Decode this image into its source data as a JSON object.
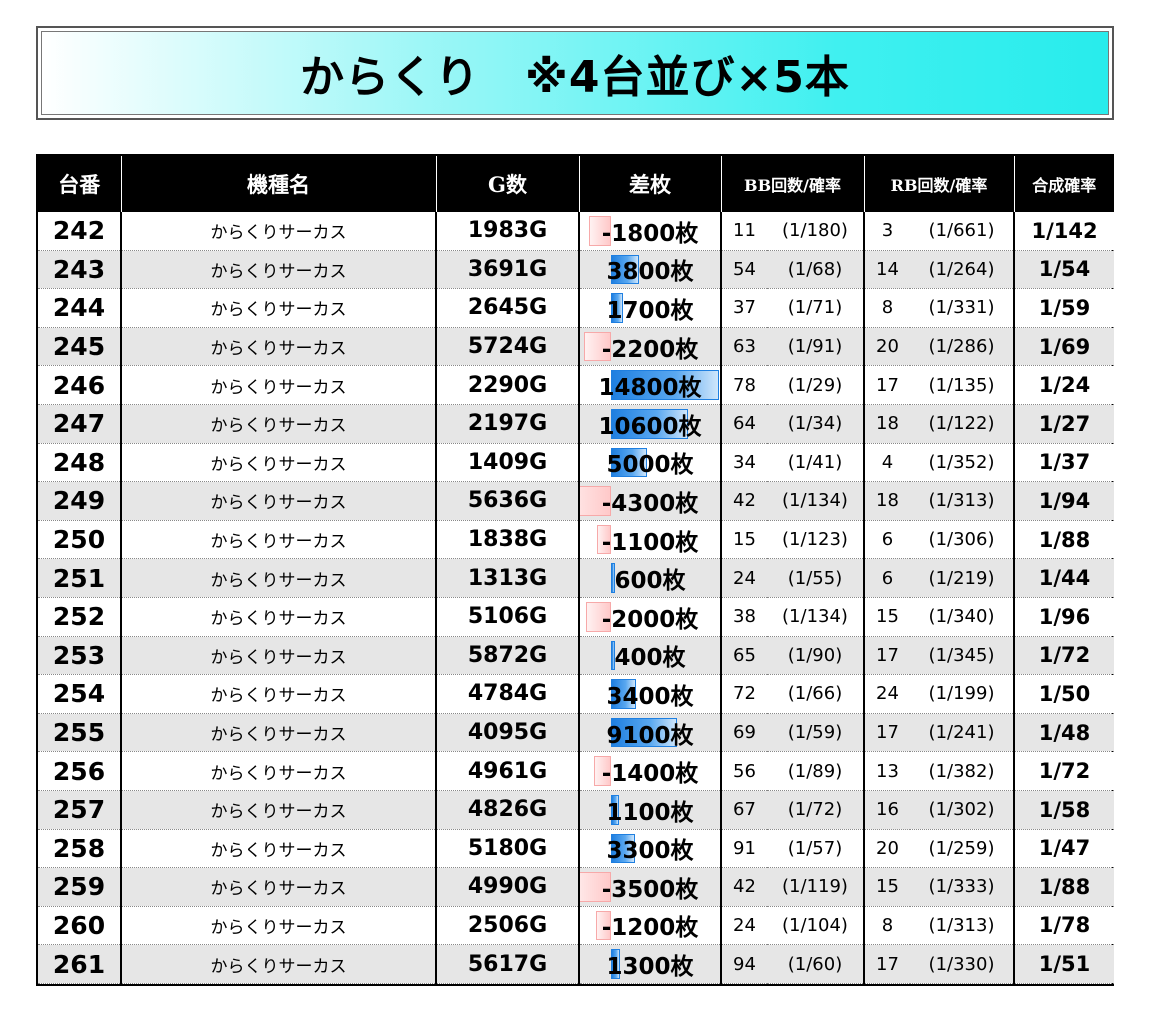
{
  "title": "からくり　※4台並び×5本",
  "headers": {
    "no": "台番",
    "name": "機種名",
    "g": "G数",
    "diff": "差枚",
    "bb": "BB回数/確率",
    "rb": "RB回数/確率",
    "total": "合成確率"
  },
  "colors": {
    "title_gradient_end": "#28ecec",
    "header_bg": "#000000",
    "positive_bar": "#1f7fe0",
    "negative_bar": "#ffc9c9",
    "alt_row": "#e6e6e6"
  },
  "rows": [
    {
      "no": "242",
      "name": "からくりサーカス",
      "g": "1983G",
      "diff": "-1800枚",
      "diff_value": -1800,
      "bb": "11",
      "bb_rate": "(1/180)",
      "rb": "3",
      "rb_rate": "(1/661)",
      "total": "1/142"
    },
    {
      "no": "243",
      "name": "からくりサーカス",
      "g": "3691G",
      "diff": "3800枚",
      "diff_value": 3800,
      "bb": "54",
      "bb_rate": "(1/68)",
      "rb": "14",
      "rb_rate": "(1/264)",
      "total": "1/54"
    },
    {
      "no": "244",
      "name": "からくりサーカス",
      "g": "2645G",
      "diff": "1700枚",
      "diff_value": 1700,
      "bb": "37",
      "bb_rate": "(1/71)",
      "rb": "8",
      "rb_rate": "(1/331)",
      "total": "1/59"
    },
    {
      "no": "245",
      "name": "からくりサーカス",
      "g": "5724G",
      "diff": "-2200枚",
      "diff_value": -2200,
      "bb": "63",
      "bb_rate": "(1/91)",
      "rb": "20",
      "rb_rate": "(1/286)",
      "total": "1/69"
    },
    {
      "no": "246",
      "name": "からくりサーカス",
      "g": "2290G",
      "diff": "14800枚",
      "diff_value": 14800,
      "bb": "78",
      "bb_rate": "(1/29)",
      "rb": "17",
      "rb_rate": "(1/135)",
      "total": "1/24"
    },
    {
      "no": "247",
      "name": "からくりサーカス",
      "g": "2197G",
      "diff": "10600枚",
      "diff_value": 10600,
      "bb": "64",
      "bb_rate": "(1/34)",
      "rb": "18",
      "rb_rate": "(1/122)",
      "total": "1/27"
    },
    {
      "no": "248",
      "name": "からくりサーカス",
      "g": "1409G",
      "diff": "5000枚",
      "diff_value": 5000,
      "bb": "34",
      "bb_rate": "(1/41)",
      "rb": "4",
      "rb_rate": "(1/352)",
      "total": "1/37"
    },
    {
      "no": "249",
      "name": "からくりサーカス",
      "g": "5636G",
      "diff": "-4300枚",
      "diff_value": -4300,
      "bb": "42",
      "bb_rate": "(1/134)",
      "rb": "18",
      "rb_rate": "(1/313)",
      "total": "1/94"
    },
    {
      "no": "250",
      "name": "からくりサーカス",
      "g": "1838G",
      "diff": "-1100枚",
      "diff_value": -1100,
      "bb": "15",
      "bb_rate": "(1/123)",
      "rb": "6",
      "rb_rate": "(1/306)",
      "total": "1/88"
    },
    {
      "no": "251",
      "name": "からくりサーカス",
      "g": "1313G",
      "diff": "600枚",
      "diff_value": 600,
      "bb": "24",
      "bb_rate": "(1/55)",
      "rb": "6",
      "rb_rate": "(1/219)",
      "total": "1/44"
    },
    {
      "no": "252",
      "name": "からくりサーカス",
      "g": "5106G",
      "diff": "-2000枚",
      "diff_value": -2000,
      "bb": "38",
      "bb_rate": "(1/134)",
      "rb": "15",
      "rb_rate": "(1/340)",
      "total": "1/96"
    },
    {
      "no": "253",
      "name": "からくりサーカス",
      "g": "5872G",
      "diff": "400枚",
      "diff_value": 400,
      "bb": "65",
      "bb_rate": "(1/90)",
      "rb": "17",
      "rb_rate": "(1/345)",
      "total": "1/72"
    },
    {
      "no": "254",
      "name": "からくりサーカス",
      "g": "4784G",
      "diff": "3400枚",
      "diff_value": 3400,
      "bb": "72",
      "bb_rate": "(1/66)",
      "rb": "24",
      "rb_rate": "(1/199)",
      "total": "1/50"
    },
    {
      "no": "255",
      "name": "からくりサーカス",
      "g": "4095G",
      "diff": "9100枚",
      "diff_value": 9100,
      "bb": "69",
      "bb_rate": "(1/59)",
      "rb": "17",
      "rb_rate": "(1/241)",
      "total": "1/48"
    },
    {
      "no": "256",
      "name": "からくりサーカス",
      "g": "4961G",
      "diff": "-1400枚",
      "diff_value": -1400,
      "bb": "56",
      "bb_rate": "(1/89)",
      "rb": "13",
      "rb_rate": "(1/382)",
      "total": "1/72"
    },
    {
      "no": "257",
      "name": "からくりサーカス",
      "g": "4826G",
      "diff": "1100枚",
      "diff_value": 1100,
      "bb": "67",
      "bb_rate": "(1/72)",
      "rb": "16",
      "rb_rate": "(1/302)",
      "total": "1/58"
    },
    {
      "no": "258",
      "name": "からくりサーカス",
      "g": "5180G",
      "diff": "3300枚",
      "diff_value": 3300,
      "bb": "91",
      "bb_rate": "(1/57)",
      "rb": "20",
      "rb_rate": "(1/259)",
      "total": "1/47"
    },
    {
      "no": "259",
      "name": "からくりサーカス",
      "g": "4990G",
      "diff": "-3500枚",
      "diff_value": -3500,
      "bb": "42",
      "bb_rate": "(1/119)",
      "rb": "15",
      "rb_rate": "(1/333)",
      "total": "1/88"
    },
    {
      "no": "260",
      "name": "からくりサーカス",
      "g": "2506G",
      "diff": "-1200枚",
      "diff_value": -1200,
      "bb": "24",
      "bb_rate": "(1/104)",
      "rb": "8",
      "rb_rate": "(1/313)",
      "total": "1/78"
    },
    {
      "no": "261",
      "name": "からくりサーカス",
      "g": "5617G",
      "diff": "1300枚",
      "diff_value": 1300,
      "bb": "94",
      "bb_rate": "(1/60)",
      "rb": "17",
      "rb_rate": "(1/330)",
      "total": "1/51"
    }
  ]
}
